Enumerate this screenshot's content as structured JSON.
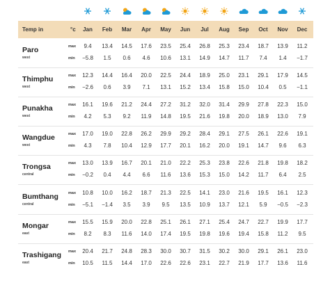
{
  "header": {
    "label": "Temp in",
    "unit": "°c",
    "months": [
      "Jan",
      "Feb",
      "Mar",
      "Apr",
      "May",
      "Jun",
      "Jul",
      "Aug",
      "Sep",
      "Oct",
      "Nov",
      "Dec"
    ]
  },
  "rows": [
    {
      "name": "Paro",
      "region": "west",
      "labels": [
        "max",
        "min"
      ],
      "max": [
        "9.4",
        "13.4",
        "14.5",
        "17.6",
        "23.5",
        "25.4",
        "26.8",
        "25.3",
        "23.4",
        "18.7",
        "13.9",
        "11.2"
      ],
      "min": [
        "−5.8",
        "1.5",
        "0.6",
        "4.6",
        "10.6",
        "13.1",
        "14.9",
        "14.7",
        "11.7",
        "7.4",
        "1.4",
        "−1.7"
      ]
    },
    {
      "name": "Thimphu",
      "region": "west",
      "labels": [
        "max",
        "min"
      ],
      "max": [
        "12.3",
        "14.4",
        "16.4",
        "20.0",
        "22.5",
        "24.4",
        "18.9",
        "25.0",
        "23.1",
        "29.1",
        "17.9",
        "14.5"
      ],
      "min": [
        "−2.6",
        "0.6",
        "3.9",
        "7.1",
        "13.1",
        "15.2",
        "13.4",
        "15.8",
        "15.0",
        "10.4",
        "0.5",
        "−1.1"
      ]
    },
    {
      "name": "Punakha",
      "region": "west",
      "labels": [
        "max",
        "min"
      ],
      "max": [
        "16.1",
        "19.6",
        "21.2",
        "24.4",
        "27.2",
        "31.2",
        "32.0",
        "31.4",
        "29.9",
        "27.8",
        "22.3",
        "15.0"
      ],
      "min": [
        "4.2",
        "5.3",
        "9.2",
        "11.9",
        "14.8",
        "19.5",
        "21.6",
        "19.8",
        "20.0",
        "18.9",
        "13.0",
        "7.9"
      ]
    },
    {
      "name": "Wangdue",
      "region": "west",
      "labels": [
        "max",
        "min"
      ],
      "max": [
        "17.0",
        "19.0",
        "22.8",
        "26.2",
        "29.9",
        "29.2",
        "28.4",
        "29.1",
        "27.5",
        "26.1",
        "22.6",
        "19.1"
      ],
      "min": [
        "4.3",
        "7.8",
        "10.4",
        "12.9",
        "17.7",
        "20.1",
        "16.2",
        "20.0",
        "19.1",
        "14.7",
        "9.6",
        "6.3"
      ]
    },
    {
      "name": "Trongsa",
      "region": "central",
      "labels": [
        "max",
        "min"
      ],
      "max": [
        "13.0",
        "13.9",
        "16.7",
        "20.1",
        "21.0",
        "22.2",
        "25.3",
        "23.8",
        "22.6",
        "21.8",
        "19.8",
        "18.2"
      ],
      "min": [
        "−0.2",
        "0.4",
        "4.4",
        "6.6",
        "11.6",
        "13.6",
        "15.3",
        "15.0",
        "14.2",
        "11.7",
        "6.4",
        "2.5"
      ]
    },
    {
      "name": "Bumthang",
      "region": "central",
      "labels": [
        "max",
        "min"
      ],
      "max": [
        "10.8",
        "10.0",
        "16.2",
        "18.7",
        "21.3",
        "22.5",
        "14.1",
        "23.0",
        "21.6",
        "19.5",
        "16.1",
        "12.3"
      ],
      "min": [
        "−5.1",
        "−1.4",
        "3.5",
        "3.9",
        "9.5",
        "13.5",
        "10.9",
        "13.7",
        "12.1",
        "5.9",
        "−0.5",
        "−2.3"
      ]
    },
    {
      "name": "Mongar",
      "region": "east",
      "labels": [
        "max",
        "min"
      ],
      "max": [
        "15.5",
        "15.9",
        "20.0",
        "22.8",
        "25.1",
        "26.1",
        "27.1",
        "25.4",
        "24.7",
        "22.7",
        "19.9",
        "17.7"
      ],
      "min": [
        "8.2",
        "8.3",
        "11.6",
        "14.0",
        "17.4",
        "19.5",
        "19.8",
        "19.6",
        "19.4",
        "15.8",
        "11.2",
        "9.5"
      ]
    },
    {
      "name": "Trashigang",
      "region": "east",
      "labels": [
        "max",
        "min"
      ],
      "max": [
        "20.4",
        "21.7",
        "24.8",
        "28.3",
        "30.0",
        "30.7",
        "31.5",
        "30.2",
        "30.0",
        "29.1",
        "26.1",
        "23.0"
      ],
      "min": [
        "10.5",
        "11.5",
        "14.4",
        "17.0",
        "22.6",
        "22.6",
        "23.1",
        "22.7",
        "21.9",
        "17.7",
        "13.6",
        "11.6"
      ]
    }
  ]
}
